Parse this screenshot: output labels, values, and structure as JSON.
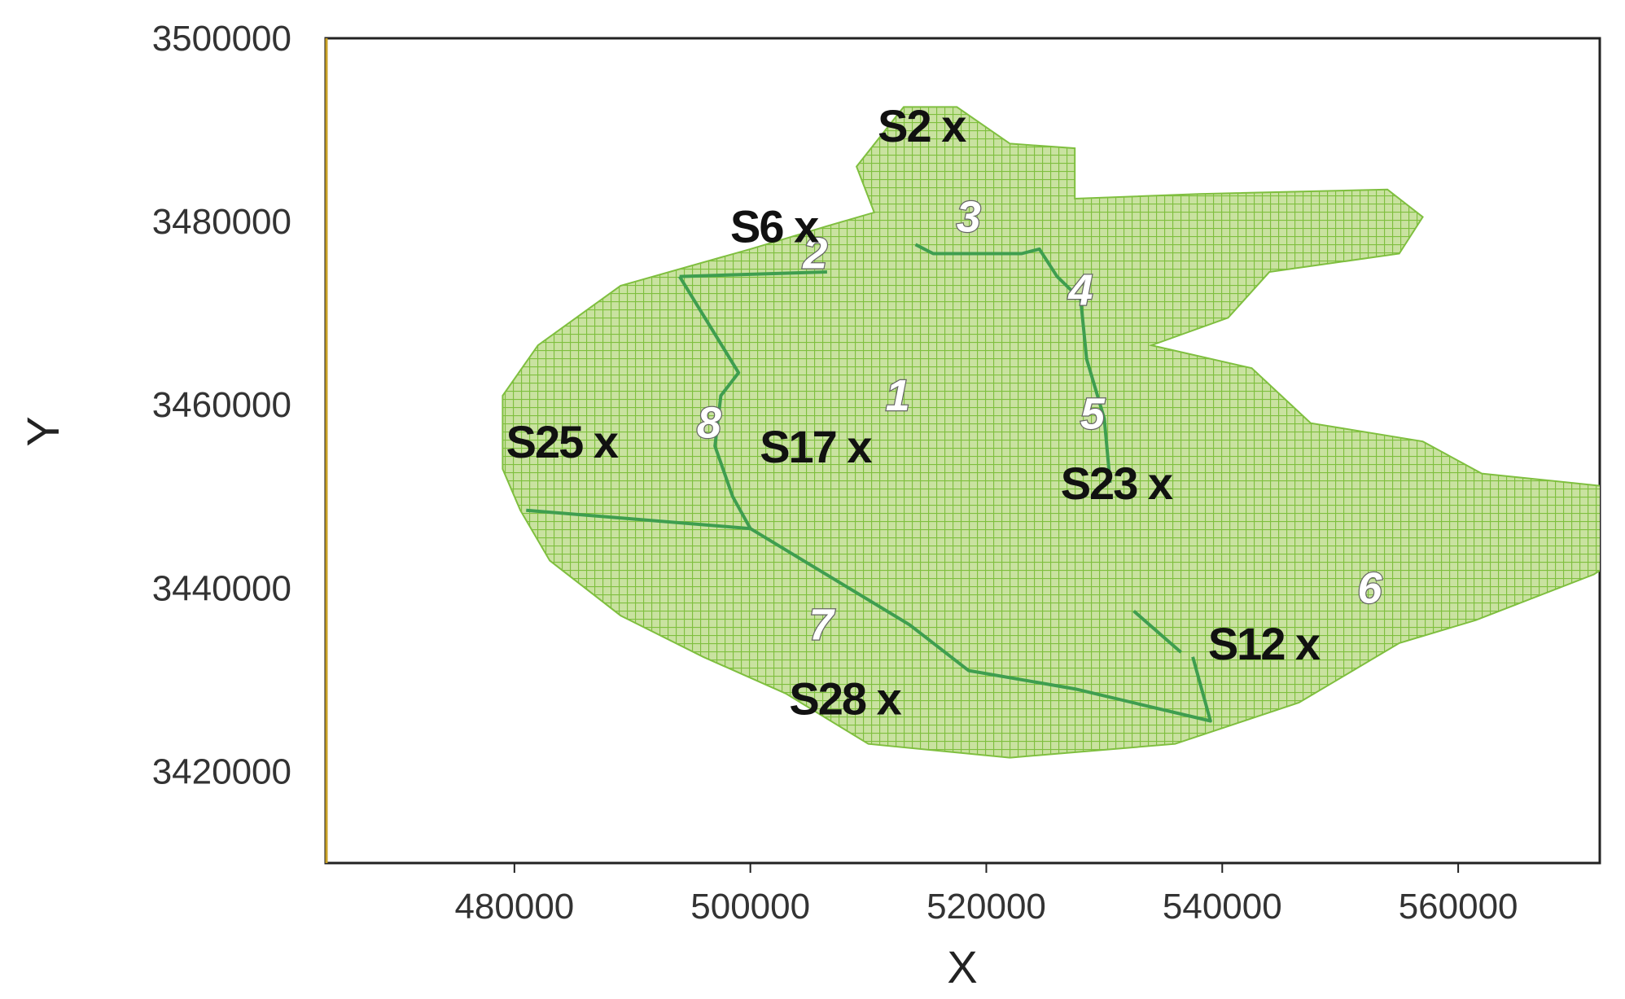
{
  "chart_data": {
    "type": "scatter",
    "xlabel": "X",
    "ylabel": "Y",
    "xlim": [
      464000,
      572000
    ],
    "ylim": [
      3410000,
      3500000
    ],
    "x_ticks": [
      {
        "value": 480000,
        "label": "480000"
      },
      {
        "value": 500000,
        "label": "500000"
      },
      {
        "value": 520000,
        "label": "520000"
      },
      {
        "value": 540000,
        "label": "540000"
      },
      {
        "value": 560000,
        "label": "560000"
      }
    ],
    "y_ticks": [
      {
        "value": 3420000,
        "label": "3420000"
      },
      {
        "value": 3440000,
        "label": "3440000"
      },
      {
        "value": 3460000,
        "label": "3460000"
      },
      {
        "value": 3480000,
        "label": "3480000"
      },
      {
        "value": 3500000,
        "label": "3500000"
      }
    ],
    "grid": false,
    "colors": {
      "mesh_fill": "#c9e2a0",
      "mesh_line": "#7fbf3f",
      "zone_boundary": "#3e9e4f",
      "axis": "#222222"
    },
    "stations": [
      {
        "label": "S2 x",
        "x": 514500,
        "y": 3490500
      },
      {
        "label": "S6 x",
        "x": 502000,
        "y": 3479500
      },
      {
        "label": "S25 x",
        "x": 484000,
        "y": 3456000
      },
      {
        "label": "S17 x",
        "x": 505500,
        "y": 3455500
      },
      {
        "label": "S23 x",
        "x": 531000,
        "y": 3451500
      },
      {
        "label": "S12 x",
        "x": 543500,
        "y": 3434000
      },
      {
        "label": "S28 x",
        "x": 508000,
        "y": 3428000
      }
    ],
    "zones": [
      {
        "label": "1",
        "x": 512500,
        "y": 3461000
      },
      {
        "label": "2",
        "x": 505500,
        "y": 3476500
      },
      {
        "label": "3",
        "x": 518500,
        "y": 3480500
      },
      {
        "label": "4",
        "x": 528000,
        "y": 3472500
      },
      {
        "label": "5",
        "x": 529000,
        "y": 3459000
      },
      {
        "label": "6",
        "x": 552500,
        "y": 3440000
      },
      {
        "label": "7",
        "x": 506000,
        "y": 3436000
      },
      {
        "label": "8",
        "x": 496500,
        "y": 3458000
      }
    ],
    "domain_outline": [
      [
        513000,
        3492500
      ],
      [
        517500,
        3492500
      ],
      [
        522000,
        3488500
      ],
      [
        527500,
        3488000
      ],
      [
        527500,
        3482500
      ],
      [
        538000,
        3483000
      ],
      [
        554000,
        3483500
      ],
      [
        557000,
        3480500
      ],
      [
        555000,
        3476500
      ],
      [
        544000,
        3474500
      ],
      [
        540500,
        3469500
      ],
      [
        534000,
        3466500
      ],
      [
        542500,
        3464000
      ],
      [
        547500,
        3458000
      ],
      [
        557000,
        3456000
      ],
      [
        562000,
        3452500
      ],
      [
        577000,
        3450500
      ],
      [
        577500,
        3446500
      ],
      [
        571500,
        3441500
      ],
      [
        561500,
        3436500
      ],
      [
        555000,
        3434000
      ],
      [
        546500,
        3427500
      ],
      [
        536000,
        3423000
      ],
      [
        522000,
        3421500
      ],
      [
        510000,
        3423000
      ],
      [
        503000,
        3428500
      ],
      [
        496000,
        3432500
      ],
      [
        489000,
        3437000
      ],
      [
        483000,
        3443000
      ],
      [
        480500,
        3448500
      ],
      [
        479000,
        3453000
      ],
      [
        479000,
        3461000
      ],
      [
        482000,
        3466500
      ],
      [
        489000,
        3473000
      ],
      [
        500000,
        3477000
      ],
      [
        506500,
        3479500
      ],
      [
        510500,
        3481000
      ],
      [
        509000,
        3486000
      ]
    ],
    "zone_boundaries": [
      [
        [
          494000,
          3474000
        ],
        [
          506500,
          3474500
        ]
      ],
      [
        [
          494000,
          3474000
        ],
        [
          499000,
          3463500
        ],
        [
          497500,
          3461000
        ],
        [
          497000,
          3455500
        ],
        [
          498500,
          3450000
        ],
        [
          500000,
          3446500
        ]
      ],
      [
        [
          481000,
          3448500
        ],
        [
          500000,
          3446500
        ]
      ],
      [
        [
          500000,
          3446500
        ],
        [
          513500,
          3436000
        ],
        [
          518500,
          3431000
        ],
        [
          527500,
          3429000
        ],
        [
          539000,
          3425500
        ],
        [
          537500,
          3432500
        ]
      ],
      [
        [
          514000,
          3477500
        ],
        [
          515500,
          3476500
        ],
        [
          523000,
          3476500
        ],
        [
          524500,
          3477000
        ],
        [
          526000,
          3474000
        ],
        [
          528000,
          3471500
        ],
        [
          528500,
          3465000
        ],
        [
          530000,
          3458500
        ],
        [
          530500,
          3451500
        ]
      ],
      [
        [
          532500,
          3437500
        ],
        [
          536500,
          3433000
        ]
      ]
    ]
  }
}
